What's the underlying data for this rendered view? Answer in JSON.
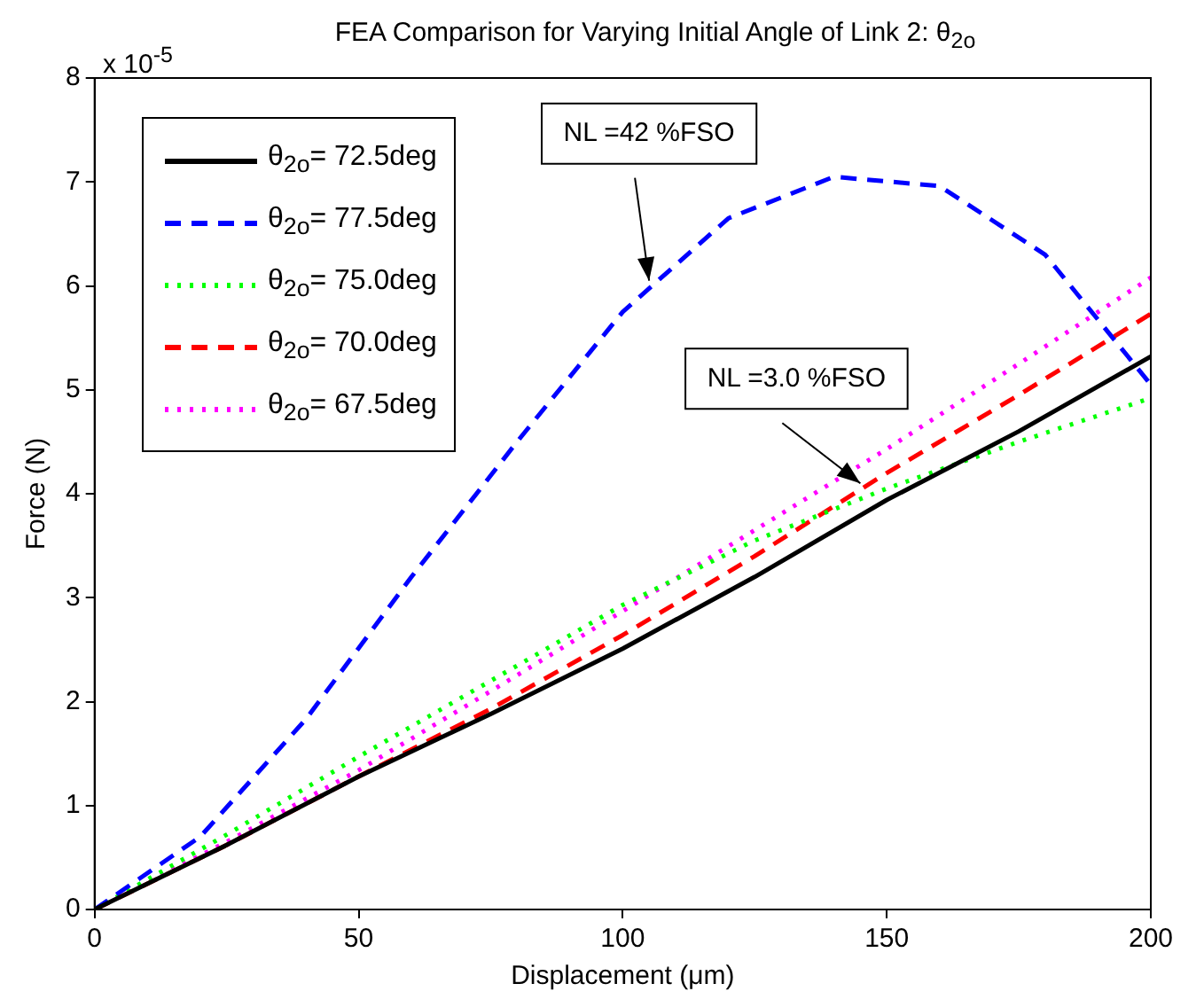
{
  "chart_data": {
    "type": "line",
    "title": "FEA Comparison for Varying Initial Angle of Link 2: θ$_{2o}$",
    "xlabel": "Displacement (μm)",
    "ylabel": "Force (N)",
    "x": [
      0,
      25,
      50,
      75,
      100,
      125,
      150,
      175,
      200
    ],
    "series": [
      {
        "name": "θ$_{2o}$= 72.5deg",
        "color": "#000000",
        "line_style": "solid",
        "values": [
          0,
          0.62,
          1.28,
          1.88,
          2.51,
          3.2,
          3.94,
          4.6,
          5.32
        ]
      },
      {
        "name": "θ$_{2o}$= 77.5deg",
        "color": "#0000ff",
        "line_style": "dashed",
        "x": [
          0,
          20,
          40,
          60,
          80,
          100,
          120,
          140,
          160,
          180,
          200
        ],
        "values": [
          0,
          0.7,
          1.83,
          3.2,
          4.5,
          5.75,
          6.65,
          7.05,
          6.96,
          6.3,
          5.05
        ]
      },
      {
        "name": "θ$_{2o}$= 75.0deg",
        "color": "#00ff00",
        "line_style": "dotted",
        "values": [
          0,
          0.72,
          1.47,
          2.2,
          2.93,
          3.55,
          4.05,
          4.5,
          4.92
        ]
      },
      {
        "name": "θ$_{2o}$= 70.0deg",
        "color": "#ff0000",
        "line_style": "dashed",
        "values": [
          0,
          0.62,
          1.28,
          1.93,
          2.64,
          3.4,
          4.2,
          4.95,
          5.73
        ]
      },
      {
        "name": "θ$_{2o}$= 67.5deg",
        "color": "#ff00ff",
        "line_style": "dotted",
        "values": [
          0,
          0.65,
          1.34,
          2.1,
          2.87,
          3.65,
          4.43,
          5.25,
          6.08
        ]
      }
    ],
    "xlim": [
      0,
      200
    ],
    "xticks": [
      0,
      50,
      100,
      150,
      200
    ],
    "ylim": [
      0,
      8
    ],
    "yticks": [
      0,
      1,
      2,
      3,
      4,
      5,
      6,
      7,
      8
    ],
    "grid": false,
    "legend": "top left",
    "marker": "none",
    "annotations": [
      "x 10$^{-5}$",
      {
        "text": "NL =42 %FSO",
        "x": 105,
        "y": 6.05
      },
      {
        "text": "NL =3.0 %FSO",
        "x": 145,
        "y": 4.1
      }
    ]
  }
}
